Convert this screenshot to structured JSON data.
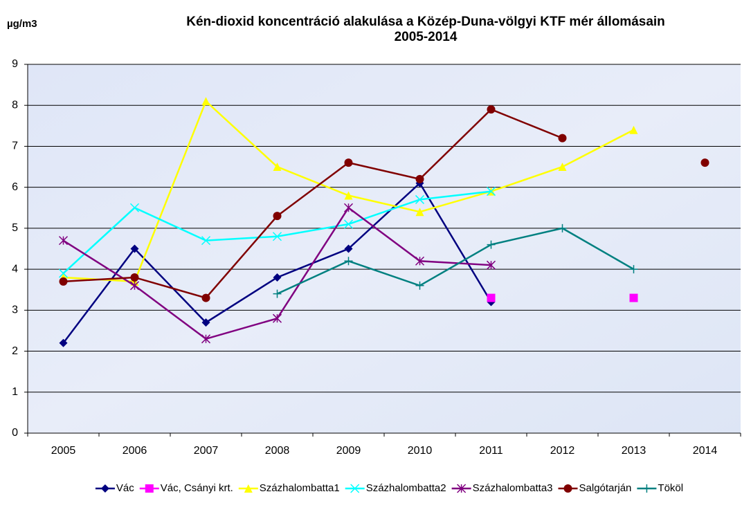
{
  "chart_data": {
    "type": "line",
    "title": [
      "Kén-dioxid koncentráció alakulása a Közép-Duna-völgyi KTF mér   állomásain",
      "2005-2014"
    ],
    "y_label": "µg/m3",
    "categories": [
      "2005",
      "2006",
      "2007",
      "2008",
      "2009",
      "2010",
      "2011",
      "2012",
      "2013",
      "2014"
    ],
    "ylim": [
      0,
      9
    ],
    "yticks": [
      0,
      1,
      2,
      3,
      4,
      5,
      6,
      7,
      8,
      9
    ],
    "grid": true,
    "legend": "bottom",
    "series": [
      {
        "name": "Vác",
        "color": "#000080",
        "marker": "diamond",
        "values": [
          2.2,
          4.5,
          2.7,
          3.8,
          4.5,
          6.1,
          3.2,
          null,
          null,
          null
        ]
      },
      {
        "name": "Vác, Csányi krt.",
        "color": "#ff00ff",
        "marker": "square",
        "values": [
          null,
          null,
          null,
          null,
          null,
          null,
          3.3,
          null,
          3.3,
          null
        ]
      },
      {
        "name": "Százhalombatta1",
        "color": "#ffff00",
        "marker": "triangle",
        "values": [
          3.8,
          3.7,
          8.1,
          6.5,
          5.8,
          5.4,
          5.9,
          6.5,
          7.4,
          null
        ]
      },
      {
        "name": "Százhalombatta2",
        "color": "#00ffff",
        "marker": "x",
        "values": [
          3.9,
          5.5,
          4.7,
          4.8,
          5.1,
          5.7,
          5.9,
          null,
          null,
          null
        ]
      },
      {
        "name": "Százhalombatta3",
        "color": "#800080",
        "marker": "star",
        "values": [
          4.7,
          3.6,
          2.3,
          2.8,
          5.5,
          4.2,
          4.1,
          null,
          null,
          null
        ]
      },
      {
        "name": "Salgótarján",
        "color": "#800000",
        "marker": "circle",
        "values": [
          3.7,
          3.8,
          3.3,
          5.3,
          6.6,
          6.2,
          7.9,
          7.2,
          null,
          6.6
        ]
      },
      {
        "name": "Tököl",
        "color": "#008080",
        "marker": "plus",
        "values": [
          null,
          null,
          null,
          3.4,
          4.2,
          3.6,
          4.6,
          5.0,
          4.0,
          null
        ]
      }
    ]
  }
}
